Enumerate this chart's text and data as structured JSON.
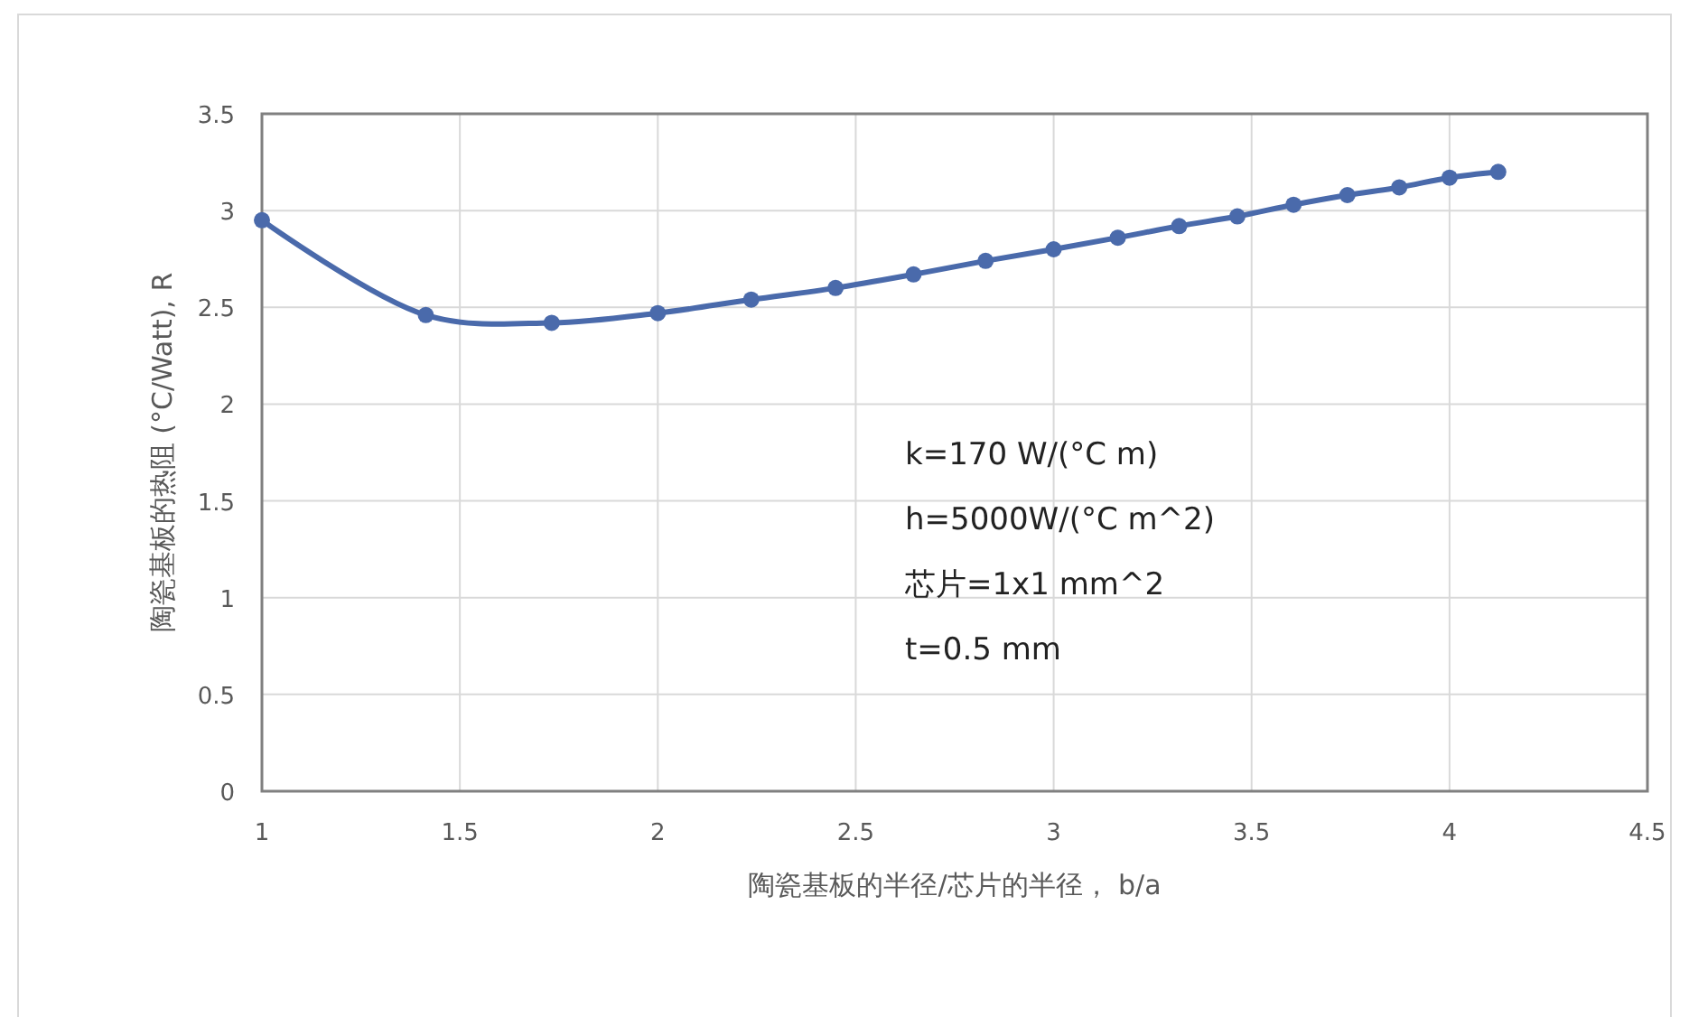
{
  "chart_data": {
    "type": "line",
    "xlabel": "陶瓷基板的半径/芯片的半径，  b/a",
    "ylabel": "陶瓷基板的热阻 (°C/Watt), R",
    "x": [
      1,
      1.414,
      1.732,
      2,
      2.236,
      2.449,
      2.646,
      2.828,
      3,
      3.162,
      3.317,
      3.464,
      3.606,
      3.742,
      3.873,
      4,
      4.123
    ],
    "series": [
      {
        "color": "#4a6aab",
        "values": [
          2.95,
          2.46,
          2.42,
          2.47,
          2.54,
          2.6,
          2.67,
          2.74,
          2.8,
          2.86,
          2.92,
          2.97,
          3.03,
          3.08,
          3.12,
          3.17,
          3.2
        ]
      }
    ],
    "xlim": [
      1,
      4.5
    ],
    "xticks": [
      1,
      1.5,
      2,
      2.5,
      3,
      3.5,
      4,
      4.5
    ],
    "ylim": [
      0,
      3.5
    ],
    "yticks": [
      0,
      0.5,
      1,
      1.5,
      2,
      2.5,
      3,
      3.5
    ],
    "grid": true,
    "marker": "circle",
    "line_style": "solid",
    "annotations": [
      "k=170 W/(°C m)",
      "h=5000W/(°C m^2)",
      "芯片=1x1 mm^2",
      "t=0.5 mm"
    ]
  }
}
